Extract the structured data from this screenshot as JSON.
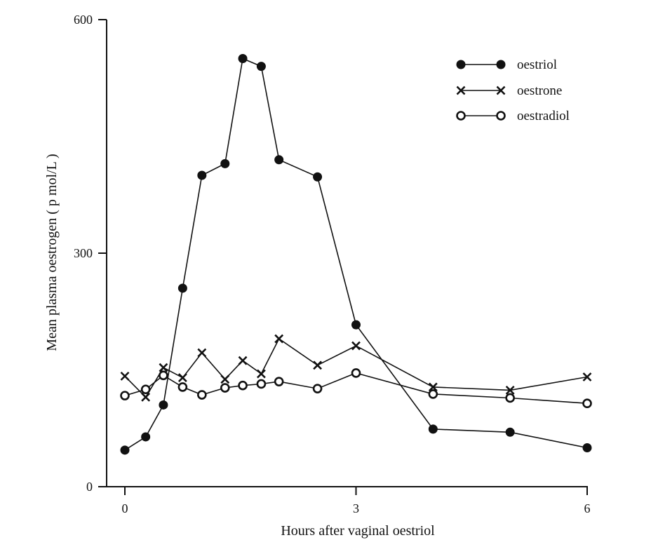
{
  "chart_data": {
    "type": "line",
    "title": "",
    "xlabel": "Hours after vaginal oestriol",
    "ylabel": "Mean plasma oestrogen ( p mol/L )",
    "xlim": [
      0,
      6
    ],
    "ylim": [
      0,
      600
    ],
    "xticks": [
      0,
      3,
      6
    ],
    "xtick_labels": [
      "0",
      "3",
      "6"
    ],
    "yticks": [
      0,
      300,
      600
    ],
    "ytick_labels": [
      "0",
      "300",
      "600"
    ],
    "grid": false,
    "legend_position": "top-right",
    "series": [
      {
        "name": "oestriol",
        "marker": "filled-circle",
        "x": [
          0,
          0.27,
          0.5,
          0.75,
          1.0,
          1.3,
          1.53,
          1.77,
          2.0,
          2.5,
          3.0,
          4.0,
          5.0,
          6.0
        ],
        "y": [
          47,
          64,
          105,
          255,
          400,
          415,
          550,
          540,
          420,
          398,
          208,
          74,
          70,
          50
        ]
      },
      {
        "name": "oestrone",
        "marker": "cross",
        "x": [
          0,
          0.27,
          0.5,
          0.75,
          1.0,
          1.3,
          1.53,
          1.77,
          2.0,
          2.5,
          3.0,
          4.0,
          5.0,
          6.0
        ],
        "y": [
          142,
          115,
          153,
          140,
          172,
          138,
          162,
          145,
          190,
          156,
          181,
          128,
          124,
          141
        ]
      },
      {
        "name": "oestradiol",
        "marker": "open-circle",
        "x": [
          0,
          0.27,
          0.5,
          0.75,
          1.0,
          1.3,
          1.53,
          1.77,
          2.0,
          2.5,
          3.0,
          4.0,
          5.0,
          6.0
        ],
        "y": [
          117,
          125,
          143,
          128,
          118,
          127,
          130,
          132,
          135,
          126,
          146,
          119,
          114,
          107
        ]
      }
    ]
  }
}
